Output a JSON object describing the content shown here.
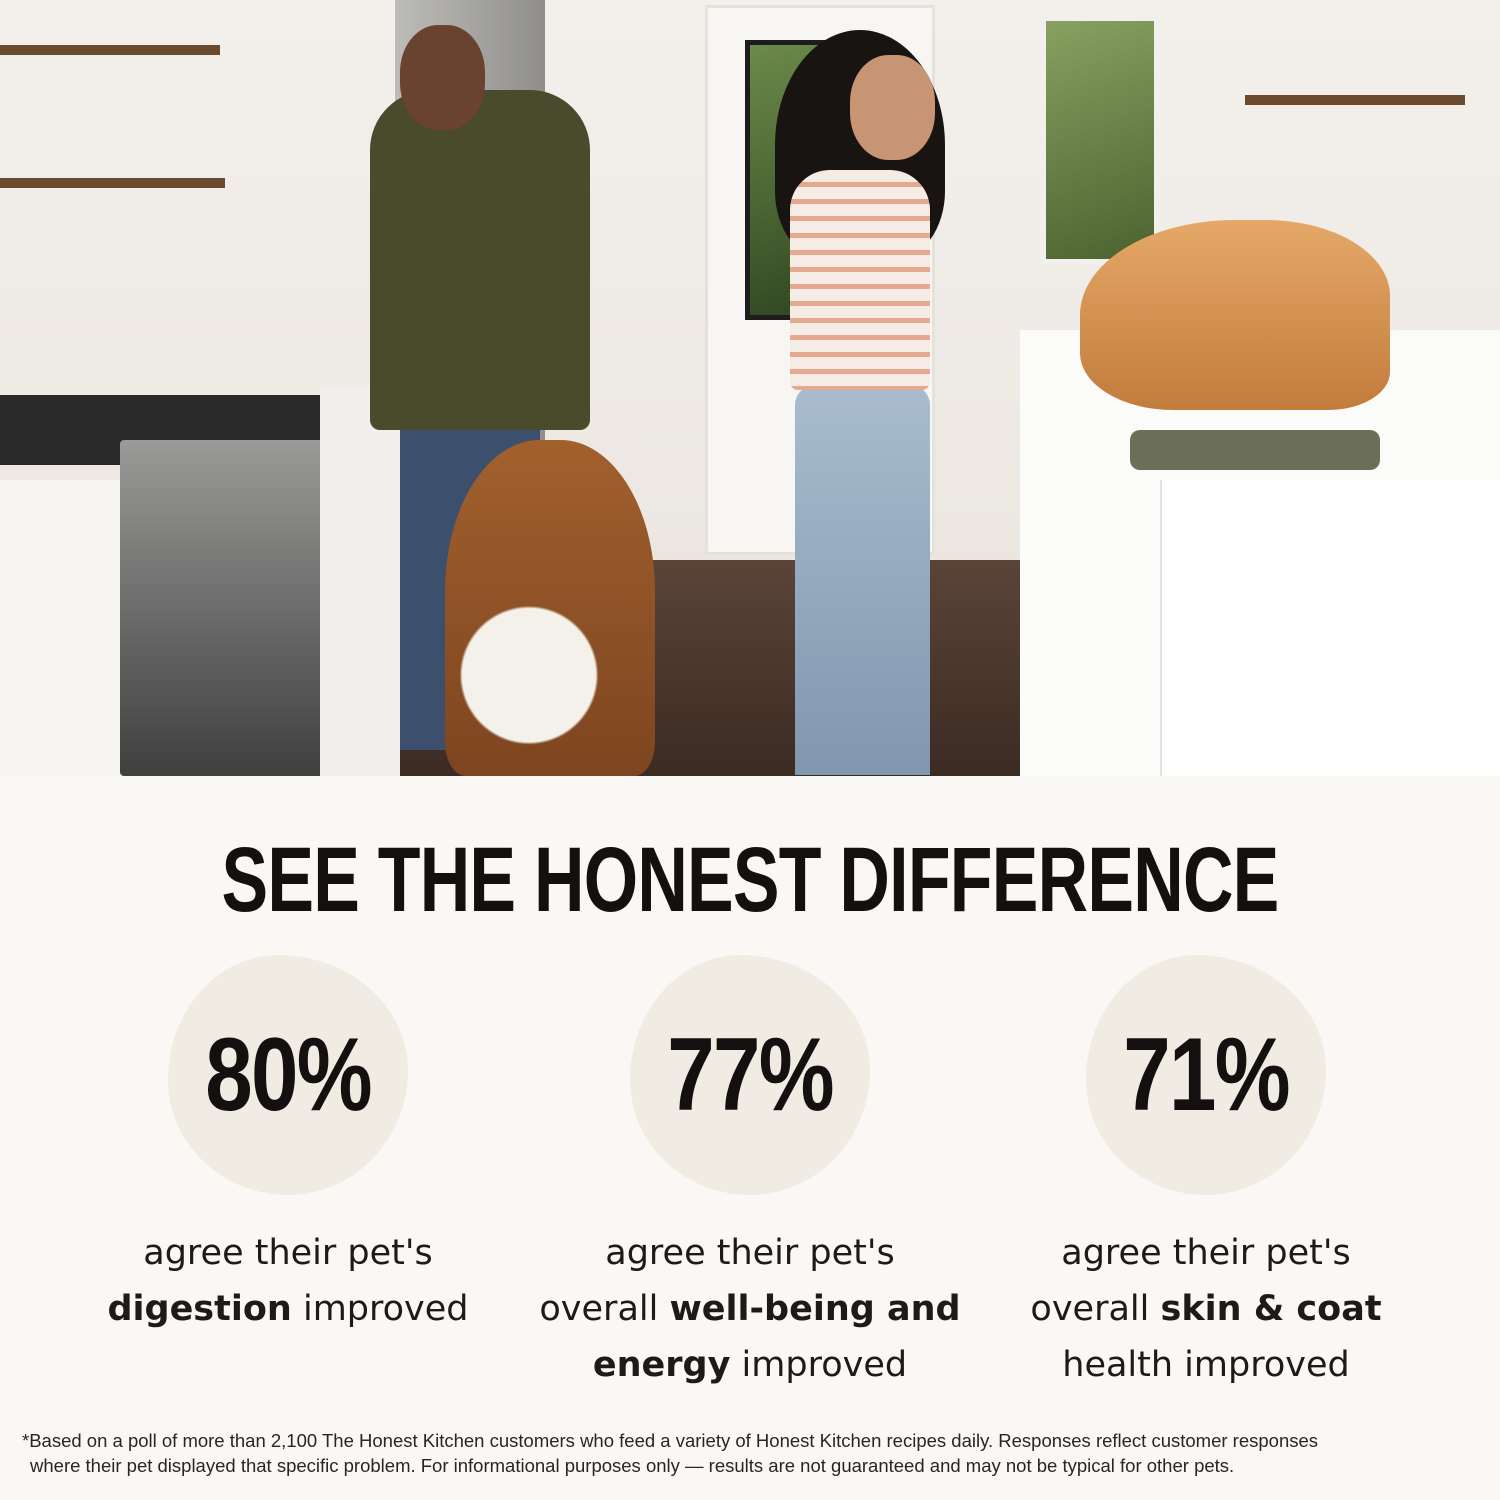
{
  "photo": {
    "subject": "kitchen-scene-with-couple-dog-and-cat"
  },
  "heading": "SEE THE HONEST DIFFERENCE",
  "stats": [
    {
      "value": "80%",
      "line1": "agree their pet's",
      "prefix": "",
      "bold": "digestion",
      "suffix": " improved"
    },
    {
      "value": "77%",
      "line1": "agree their pet's",
      "prefix": "overall ",
      "bold": "well-being and energy",
      "suffix": " improved"
    },
    {
      "value": "71%",
      "line1": "agree their pet's",
      "prefix": "overall ",
      "bold": "skin & coat",
      "suffix": " health improved"
    }
  ],
  "footnote": {
    "line1": "*Based on a poll of more than 2,100 The Honest Kitchen customers who feed a variety of Honest Kitchen recipes daily. Responses reflect customer responses",
    "line2": "where their pet displayed that specific problem. For informational purposes only — results are not guaranteed and may not be typical for other pets."
  },
  "colors": {
    "background": "#faf8f4",
    "blob": "#f1ece3",
    "text": "#141010"
  }
}
